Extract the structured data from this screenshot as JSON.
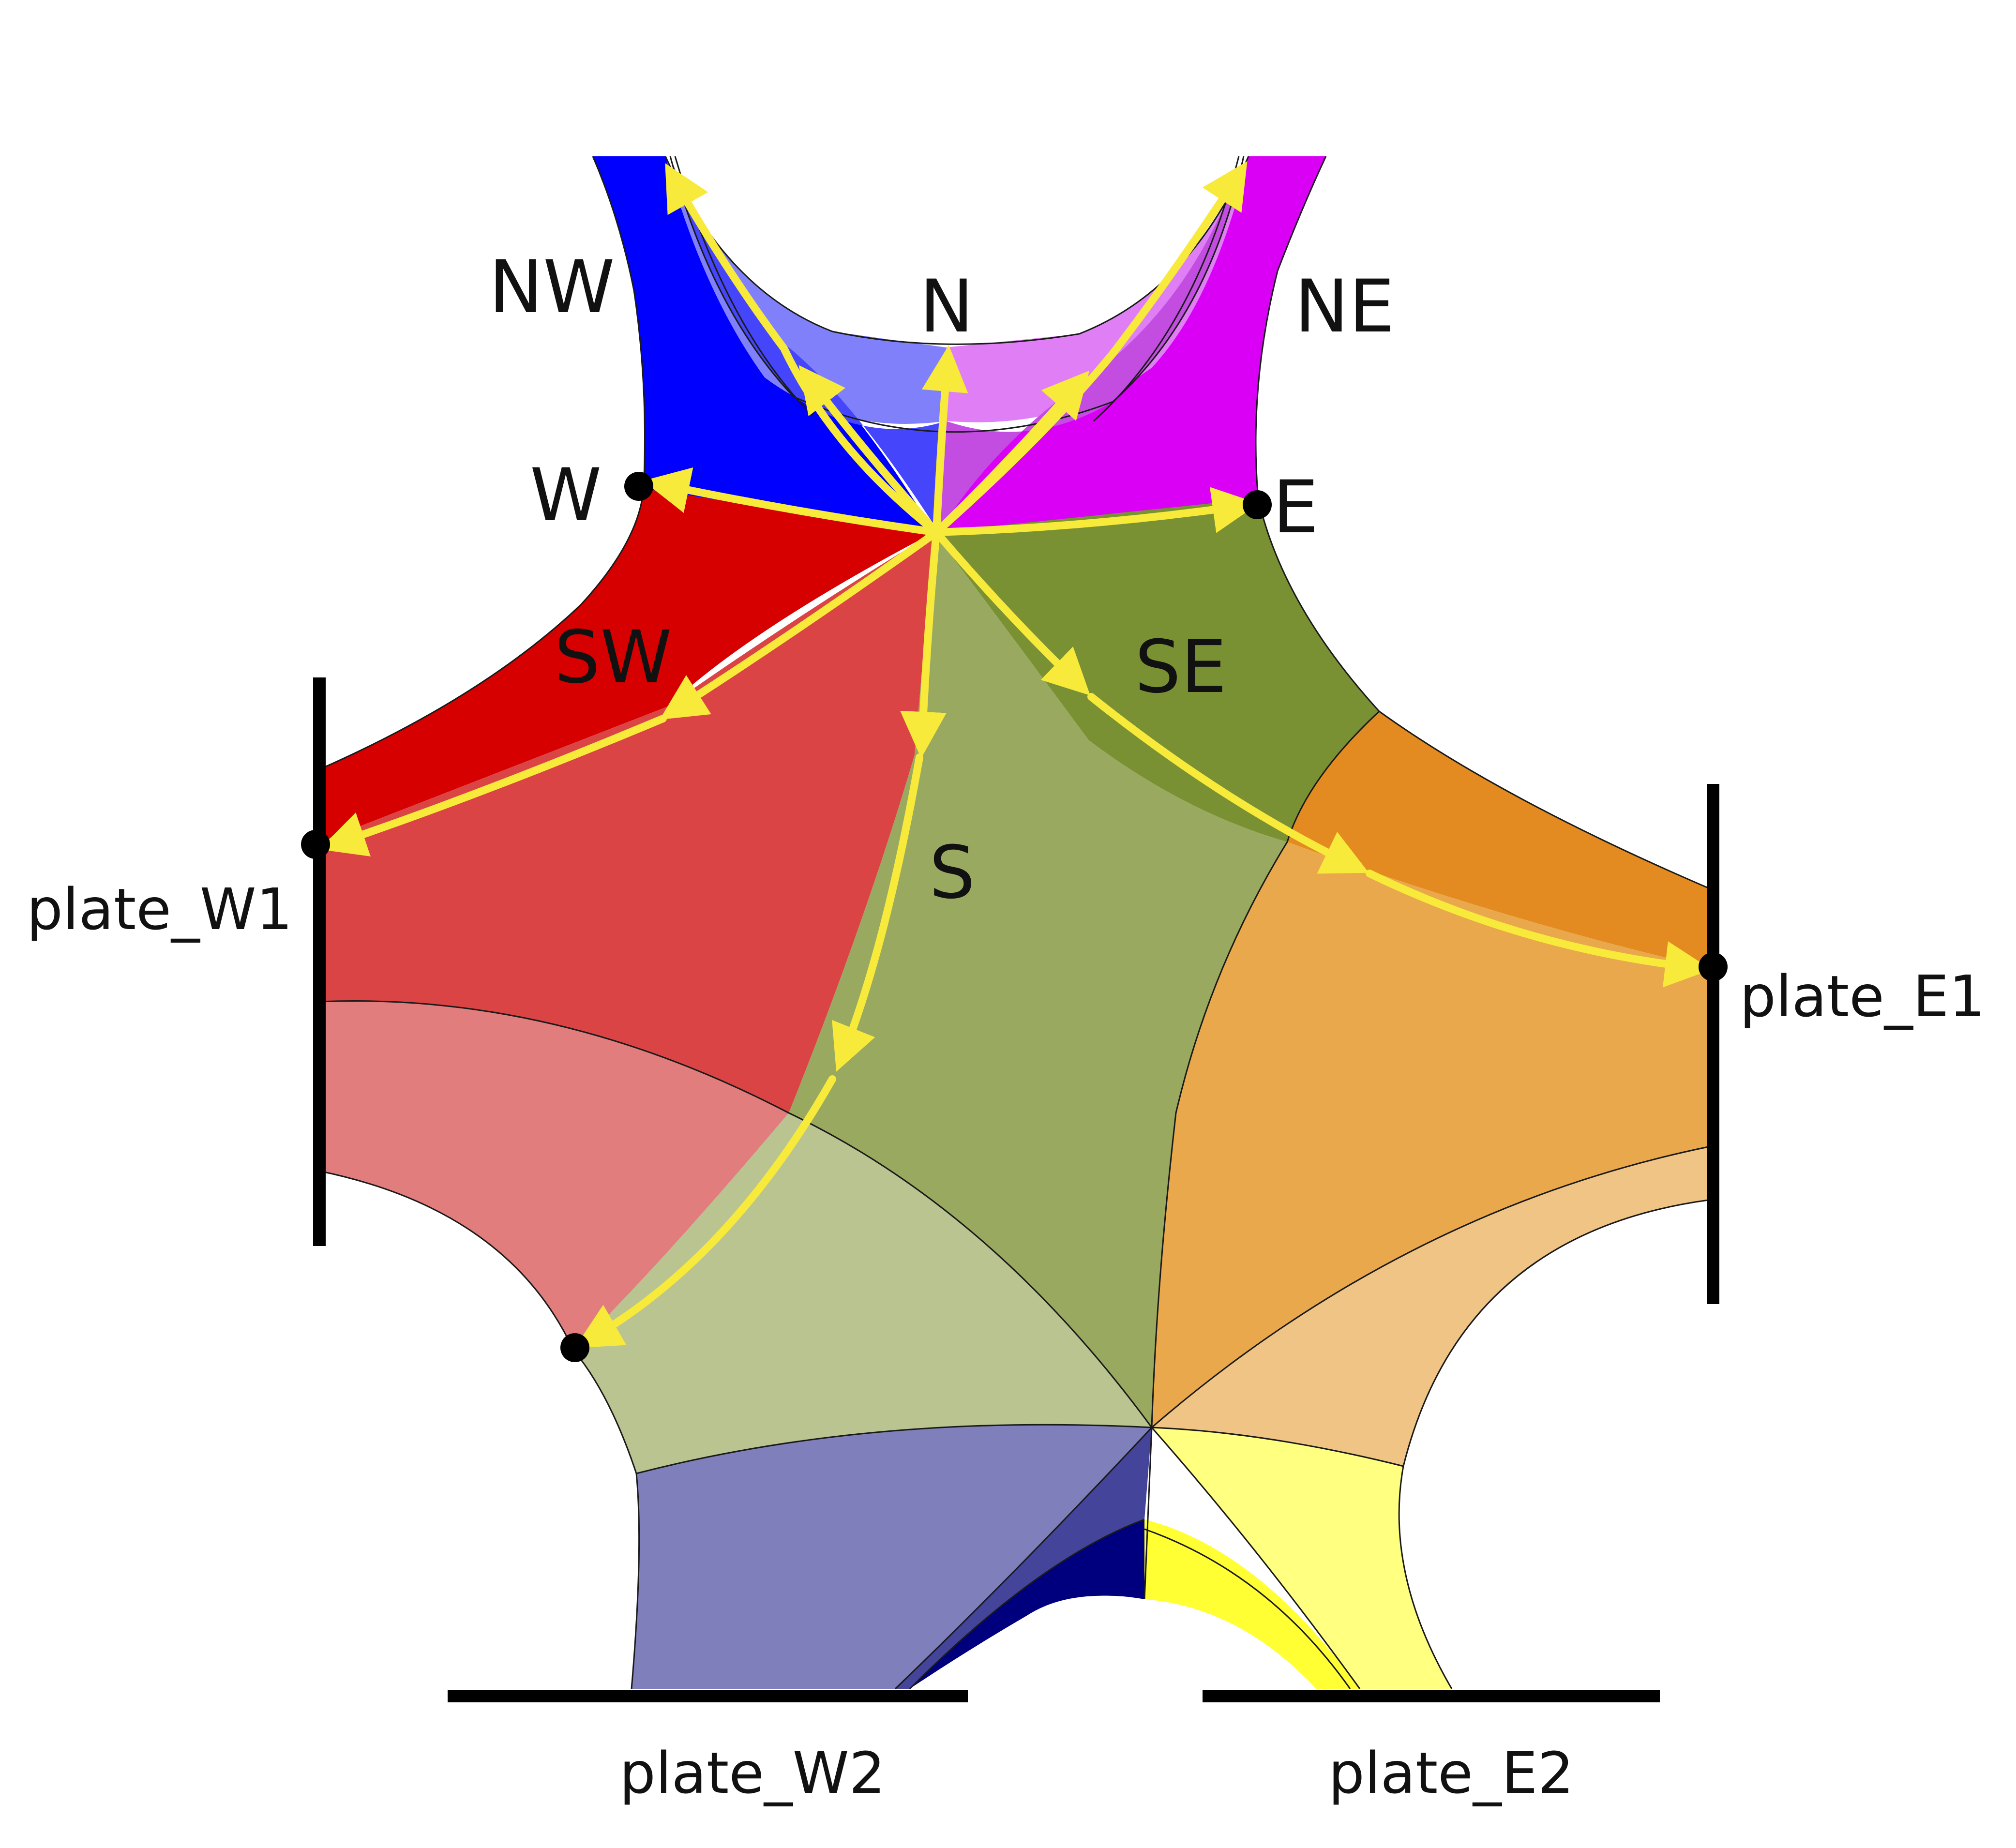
{
  "colors": {
    "nw_blue": "#0000ff",
    "n_light_blue": "#8080fb",
    "n_mid_blue": "#4545fb",
    "ne_magenta": "#da00f5",
    "n_light_magenta": "#e07ff5",
    "n_mid_magenta": "#c24de0",
    "w_red": "#d70000",
    "sw_red": "#db4444",
    "sw_pink": "#e17d7d",
    "se_olive": "#7a9133",
    "s_olive": "#99a960",
    "s_light_olive": "#b9c490",
    "e_orange": "#e38b20",
    "se_orange": "#e9a84b",
    "e_light_orange": "#efc485",
    "w2_slate": "#7f7fbb",
    "w2_indigo": "#44449a",
    "w2_navy": "#00007f",
    "e2_light_yellow": "#ffff80",
    "e2_yellow": "#ffff33",
    "ray_yellow": "#f7ea3a",
    "line_black": "#000000"
  },
  "labels": {
    "nw": "NW",
    "n": "N",
    "ne": "NE",
    "w": "W",
    "e": "E",
    "sw": "SW",
    "se": "SE",
    "s": "S",
    "plate_w1": "plate_W1",
    "plate_e1": "plate_E1",
    "plate_w2": "plate_W2",
    "plate_e2": "plate_E2"
  }
}
